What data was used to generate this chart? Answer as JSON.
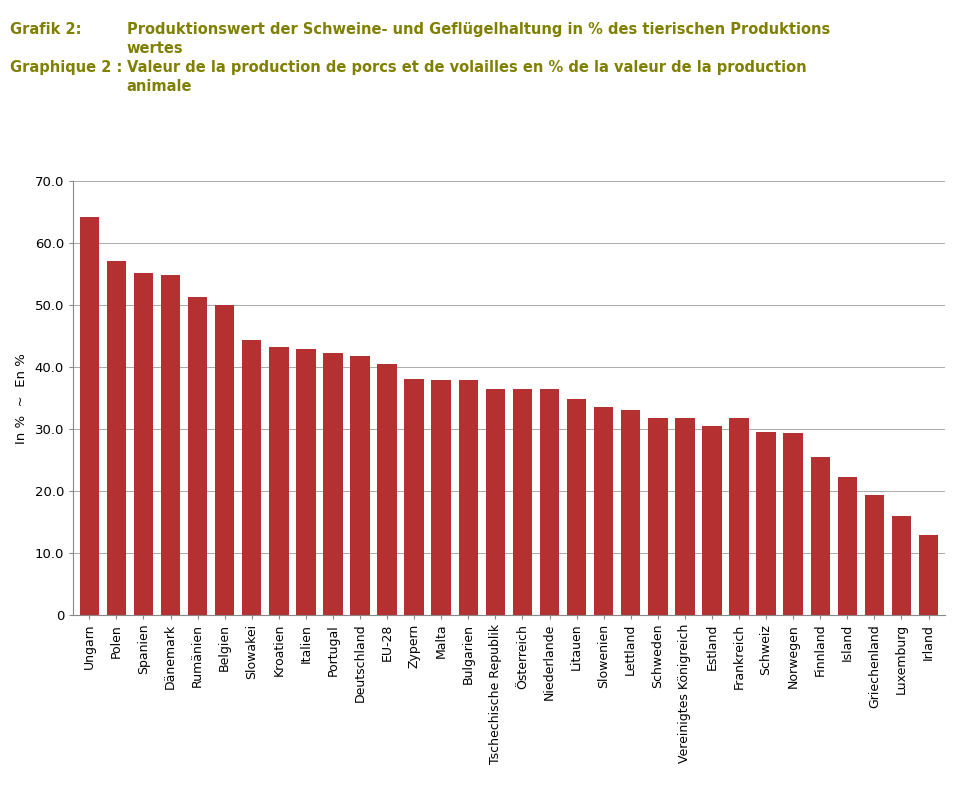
{
  "title_color": "#808000",
  "categories": [
    "Ungarn",
    "Polen",
    "Spanien",
    "Dänemark",
    "Rumänien",
    "Belgien",
    "Slowakei",
    "Kroatien",
    "Italien",
    "Portugal",
    "Deutschland",
    "EU-28",
    "Zypern",
    "Malta",
    "Bulgarien",
    "Tschechische Republik",
    "Österreich",
    "Niederlande",
    "Litauen",
    "Slowenien",
    "Lettland",
    "Schweden",
    "Vereinigtes Königreich",
    "Estland",
    "Frankreich",
    "Schweiz",
    "Norwegen",
    "Finnland",
    "Island",
    "Griechenland",
    "Luxemburg",
    "Irland"
  ],
  "values": [
    64.3,
    57.1,
    55.2,
    54.9,
    51.4,
    50.0,
    44.5,
    43.3,
    43.0,
    42.3,
    41.8,
    40.5,
    38.1,
    38.0,
    37.9,
    36.6,
    36.6,
    36.5,
    34.9,
    33.7,
    33.2,
    31.9,
    31.8,
    30.6,
    31.9,
    29.6,
    29.4,
    25.6,
    22.4,
    19.4,
    16.1,
    12.9
  ],
  "bar_color": "#b53030",
  "ylabel": "In %  ~  En %",
  "ylim": [
    0,
    70
  ],
  "yticks": [
    0,
    10,
    20,
    30,
    40,
    50,
    60,
    70
  ],
  "ytick_labels": [
    "0",
    "10.0",
    "20.0",
    "30.0",
    "40.0",
    "50.0",
    "60.0",
    "70.0"
  ],
  "background_color": "#ffffff",
  "grid_color": "#aaaaaa",
  "grafik_label": "Grafik 2:",
  "grafik_text1": "Produktionswert der Schweine- und Geflügelhaltung in % des tierischen Produktions",
  "grafik_text2": "wertes",
  "graphique_label": "Graphique 2 :",
  "graphique_text1": "Valeur de la production de porcs et de volailles en % de la valeur de la production",
  "graphique_text2": "animale",
  "title_fontsize": 10.5
}
